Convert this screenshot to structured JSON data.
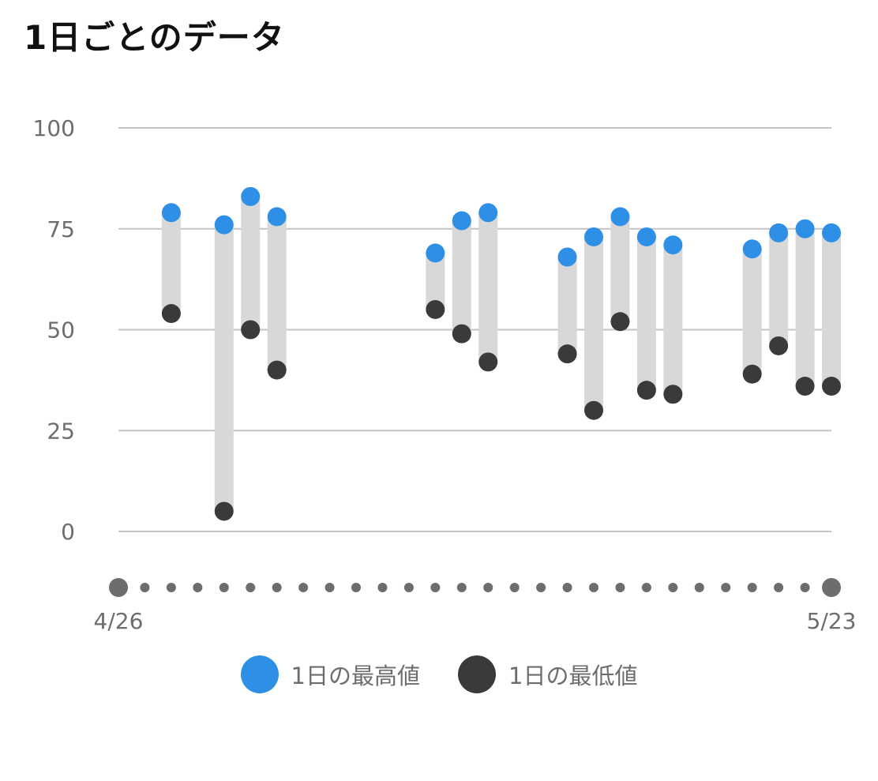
{
  "title": "1日ごとのデータ",
  "colors": {
    "high": "#2e8fe6",
    "low": "#3a3a3a",
    "bar": "#d8d8d8",
    "grid": "#c4c4c4",
    "text": "#6d6d6d",
    "day_dot": "#6d6d6d"
  },
  "chart_data": {
    "type": "range-dot",
    "ylim": [
      0,
      100
    ],
    "yticks": [
      "0",
      "25",
      "50",
      "75",
      "100"
    ],
    "x_start_label": "4/26",
    "x_end_label": "5/23",
    "day_count": 28,
    "grid": true,
    "legend_position": "bottom",
    "series": [
      {
        "name": "1日の最高値",
        "color": "#2e8fe6"
      },
      {
        "name": "1日の最低値",
        "color": "#3a3a3a"
      }
    ],
    "points": [
      {
        "day": 2,
        "high": 79,
        "low": 54
      },
      {
        "day": 4,
        "high": 76,
        "low": 5
      },
      {
        "day": 5,
        "high": 83,
        "low": 50
      },
      {
        "day": 6,
        "high": 78,
        "low": 40
      },
      {
        "day": 12,
        "high": 69,
        "low": 55
      },
      {
        "day": 13,
        "high": 77,
        "low": 49
      },
      {
        "day": 14,
        "high": 79,
        "low": 42
      },
      {
        "day": 17,
        "high": 68,
        "low": 44
      },
      {
        "day": 18,
        "high": 73,
        "low": 30
      },
      {
        "day": 19,
        "high": 78,
        "low": 52
      },
      {
        "day": 20,
        "high": 73,
        "low": 35
      },
      {
        "day": 21,
        "high": 71,
        "low": 34
      },
      {
        "day": 24,
        "high": 70,
        "low": 39
      },
      {
        "day": 25,
        "high": 74,
        "low": 46
      },
      {
        "day": 26,
        "high": 75,
        "low": 36
      },
      {
        "day": 27,
        "high": 74,
        "low": 36
      }
    ]
  }
}
